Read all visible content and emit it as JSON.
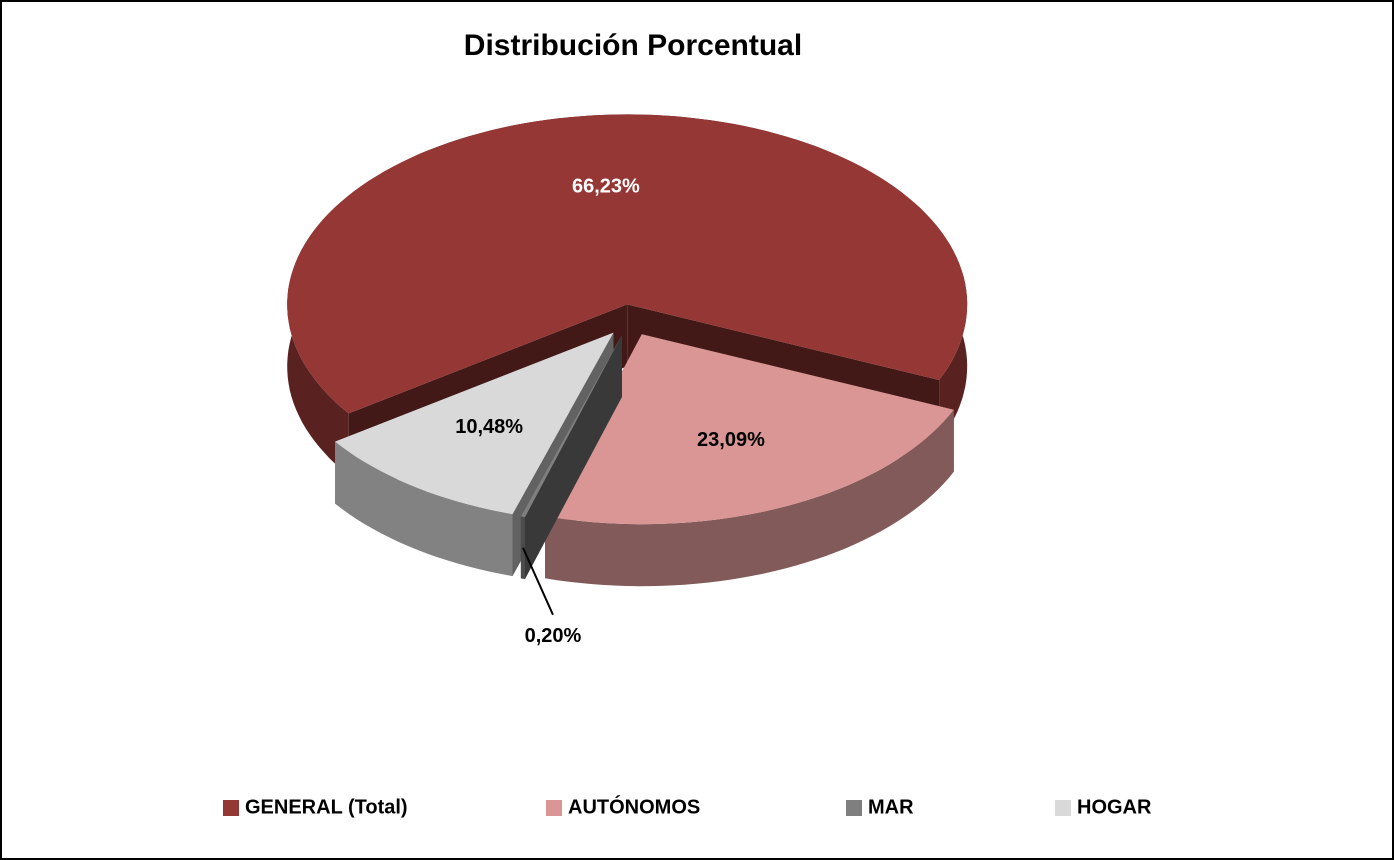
{
  "chart_data": {
    "type": "pie",
    "title": "Distribución Porcentual",
    "categories": [
      "GENERAL (Total)",
      "AUTÓNOMOS",
      "MAR",
      "HOGAR"
    ],
    "values": [
      66.23,
      23.09,
      0.2,
      10.48
    ],
    "value_labels": [
      "66,23%",
      "23,09%",
      "0,20%",
      "10,48%"
    ],
    "colors": [
      "#953735",
      "#d99694",
      "#7f7f7f",
      "#d9d9d9"
    ],
    "legend": "bottom"
  }
}
